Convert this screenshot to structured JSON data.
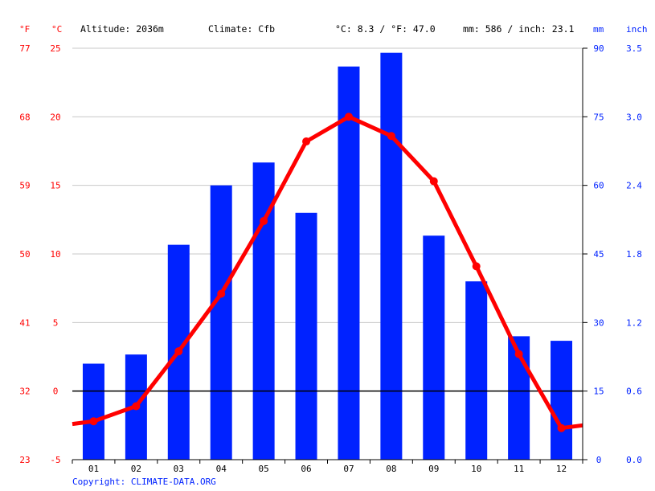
{
  "header": {
    "unit_f": "°F",
    "unit_c": "°C",
    "altitude": "Altitude: 2036m",
    "climate": "Climate: Cfb",
    "temp_avg": "°C: 8.3 / °F: 47.0",
    "precip_total": "mm: 586 / inch: 23.1",
    "unit_mm": "mm",
    "unit_inch": "inch"
  },
  "footer": {
    "copyright": "Copyright: CLIMATE-DATA.ORG"
  },
  "colors": {
    "bars": "#0022ff",
    "line": "#ff0000",
    "grid": "#c8c8c8",
    "zero_line": "#000000"
  },
  "chart_data": {
    "type": "bar",
    "categories": [
      "01",
      "02",
      "03",
      "04",
      "05",
      "06",
      "07",
      "08",
      "09",
      "10",
      "11",
      "12"
    ],
    "series": [
      {
        "type": "bar",
        "axis": "right_mm",
        "values": [
          21,
          23,
          47,
          60,
          65,
          54,
          86,
          89,
          49,
          39,
          27,
          26
        ]
      },
      {
        "type": "line",
        "axis": "left_c",
        "values": [
          -2.2,
          -1.1,
          2.9,
          7.1,
          12.4,
          18.2,
          20.0,
          18.6,
          15.3,
          9.1,
          2.7,
          -2.7
        ]
      }
    ],
    "edge_extension": {
      "left": -2.4,
      "right": -2.5
    },
    "axes": {
      "left_c": {
        "range": [
          -5,
          25
        ],
        "ticks": [
          "-5",
          "0",
          "5",
          "10",
          "15",
          "20",
          "25"
        ]
      },
      "left_f": {
        "ticks": [
          "23",
          "32",
          "41",
          "50",
          "59",
          "68",
          "77"
        ]
      },
      "right_mm": {
        "range": [
          0,
          90
        ],
        "ticks": [
          "0",
          "15",
          "30",
          "45",
          "60",
          "75",
          "90"
        ]
      },
      "right_inch": {
        "ticks": [
          "0.0",
          "0.6",
          "1.2",
          "1.8",
          "2.4",
          "3.0",
          "3.5"
        ]
      }
    },
    "grid": true,
    "zero_line": true
  }
}
